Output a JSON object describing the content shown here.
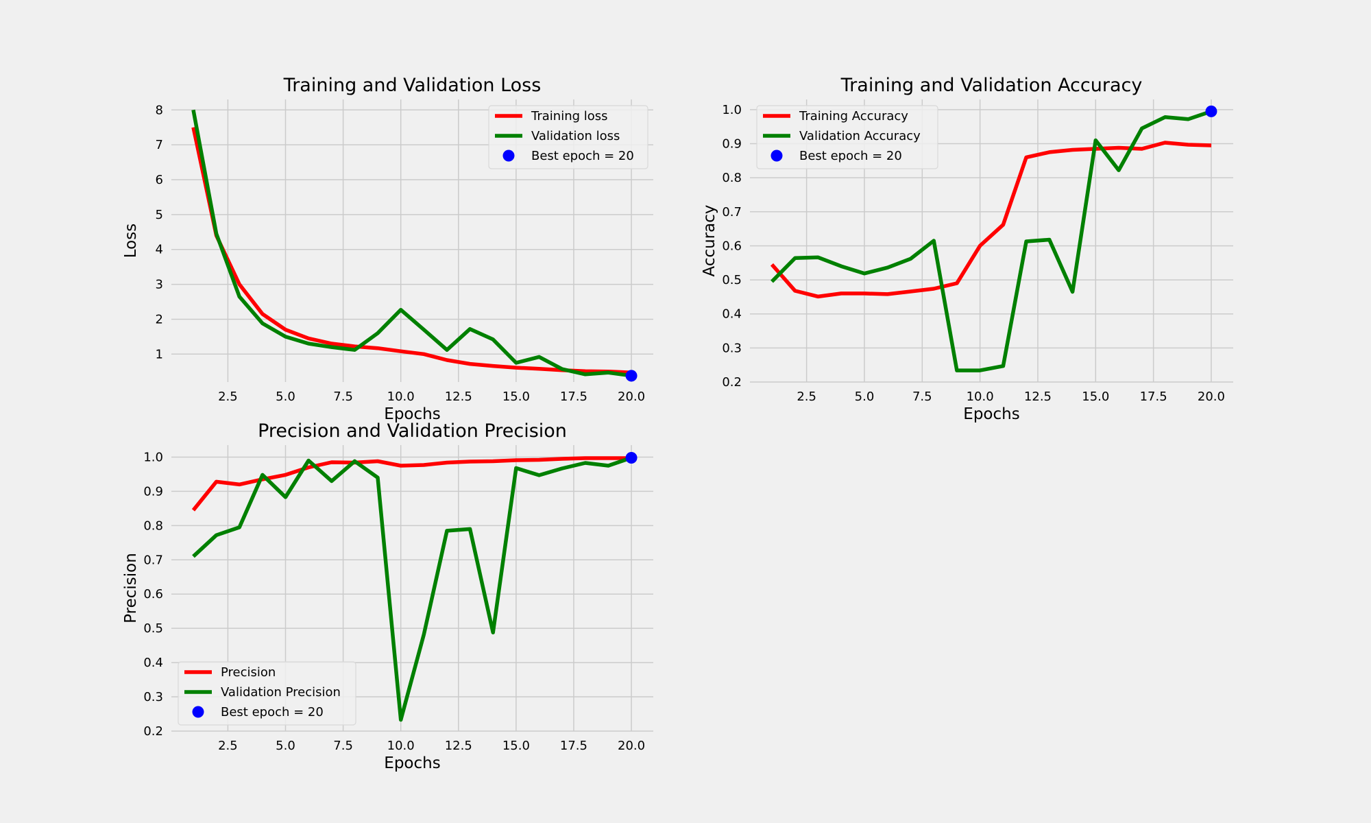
{
  "colors": {
    "background": "#f0f0f0",
    "grid": "#cbcbcb",
    "training": "#ff0000",
    "validation": "#008000",
    "best_marker": "#0000ff"
  },
  "chart_data": [
    {
      "type": "line",
      "title": "Training and Validation Loss",
      "xlabel": "Epochs",
      "ylabel": "Loss",
      "x": [
        1,
        2,
        3,
        4,
        5,
        6,
        7,
        8,
        9,
        10,
        11,
        12,
        13,
        14,
        15,
        16,
        17,
        18,
        19,
        20
      ],
      "xlim": [
        0.05,
        20.95
      ],
      "ylim": [
        0.2,
        8.3
      ],
      "xticks": [
        2.5,
        5.0,
        7.5,
        10.0,
        12.5,
        15.0,
        17.5,
        20.0
      ],
      "xtick_labels": [
        "2.5",
        "5.0",
        "7.5",
        "10.0",
        "12.5",
        "15.0",
        "17.5",
        "20.0"
      ],
      "yticks": [
        1,
        2,
        3,
        4,
        5,
        6,
        7,
        8
      ],
      "ytick_labels": [
        "1",
        "2",
        "3",
        "4",
        "5",
        "6",
        "7",
        "8"
      ],
      "grid": true,
      "legend_position": "top-right",
      "series": [
        {
          "name": "Training loss",
          "color": "#ff0000",
          "values": [
            7.5,
            4.4,
            3.0,
            2.15,
            1.7,
            1.45,
            1.3,
            1.22,
            1.17,
            1.08,
            1.0,
            0.83,
            0.72,
            0.66,
            0.61,
            0.58,
            0.54,
            0.51,
            0.5,
            0.47
          ]
        },
        {
          "name": "Validation loss",
          "color": "#008000",
          "values": [
            8.0,
            4.45,
            2.65,
            1.88,
            1.5,
            1.3,
            1.2,
            1.12,
            1.6,
            2.27,
            1.7,
            1.12,
            1.72,
            1.42,
            0.75,
            0.92,
            0.57,
            0.42,
            0.47,
            0.38
          ]
        }
      ],
      "best": {
        "label": "Best epoch = 20",
        "x": 20,
        "y": 0.38
      }
    },
    {
      "type": "line",
      "title": "Training and Validation Accuracy",
      "xlabel": "Epochs",
      "ylabel": "Accuracy",
      "x": [
        1,
        2,
        3,
        4,
        5,
        6,
        7,
        8,
        9,
        10,
        11,
        12,
        13,
        14,
        15,
        16,
        17,
        18,
        19,
        20
      ],
      "xlim": [
        0.05,
        20.95
      ],
      "ylim": [
        0.2,
        1.03
      ],
      "xticks": [
        2.5,
        5.0,
        7.5,
        10.0,
        12.5,
        15.0,
        17.5,
        20.0
      ],
      "xtick_labels": [
        "2.5",
        "5.0",
        "7.5",
        "10.0",
        "12.5",
        "15.0",
        "17.5",
        "20.0"
      ],
      "yticks": [
        0.2,
        0.3,
        0.4,
        0.5,
        0.6,
        0.7,
        0.8,
        0.9,
        1.0
      ],
      "ytick_labels": [
        "0.2",
        "0.3",
        "0.4",
        "0.5",
        "0.6",
        "0.7",
        "0.8",
        "0.9",
        "1.0"
      ],
      "grid": true,
      "legend_position": "top-left",
      "series": [
        {
          "name": "Training Accuracy",
          "color": "#ff0000",
          "values": [
            0.545,
            0.468,
            0.451,
            0.46,
            0.46,
            0.458,
            0.466,
            0.474,
            0.49,
            0.6,
            0.662,
            0.86,
            0.875,
            0.882,
            0.885,
            0.888,
            0.885,
            0.903,
            0.897,
            0.895
          ]
        },
        {
          "name": "Validation Accuracy",
          "color": "#008000",
          "values": [
            0.495,
            0.564,
            0.566,
            0.54,
            0.519,
            0.536,
            0.562,
            0.615,
            0.234,
            0.234,
            0.247,
            0.613,
            0.618,
            0.465,
            0.91,
            0.822,
            0.945,
            0.978,
            0.972,
            0.995
          ]
        }
      ],
      "best": {
        "label": "Best epoch = 20",
        "x": 20,
        "y": 0.995
      }
    },
    {
      "type": "line",
      "title": "Precision and Validation Precision",
      "xlabel": "Epochs",
      "ylabel": "Precision",
      "x": [
        1,
        2,
        3,
        4,
        5,
        6,
        7,
        8,
        9,
        10,
        11,
        12,
        13,
        14,
        15,
        16,
        17,
        18,
        19,
        20
      ],
      "xlim": [
        0.05,
        20.95
      ],
      "ylim": [
        0.2,
        1.035
      ],
      "xticks": [
        2.5,
        5.0,
        7.5,
        10.0,
        12.5,
        15.0,
        17.5,
        20.0
      ],
      "xtick_labels": [
        "2.5",
        "5.0",
        "7.5",
        "10.0",
        "12.5",
        "15.0",
        "17.5",
        "20.0"
      ],
      "yticks": [
        0.2,
        0.3,
        0.4,
        0.5,
        0.6,
        0.7,
        0.8,
        0.9,
        1.0
      ],
      "ytick_labels": [
        "0.2",
        "0.3",
        "0.4",
        "0.5",
        "0.6",
        "0.7",
        "0.8",
        "0.9",
        "1.0"
      ],
      "grid": true,
      "legend_position": "bottom-left",
      "series": [
        {
          "name": "Precision",
          "color": "#ff0000",
          "values": [
            0.845,
            0.928,
            0.92,
            0.935,
            0.948,
            0.97,
            0.985,
            0.984,
            0.988,
            0.975,
            0.977,
            0.984,
            0.987,
            0.988,
            0.991,
            0.992,
            0.995,
            0.997,
            0.997,
            0.997
          ]
        },
        {
          "name": "Validation Precision",
          "color": "#008000",
          "values": [
            0.71,
            0.772,
            0.795,
            0.948,
            0.883,
            0.99,
            0.93,
            0.988,
            0.94,
            0.233,
            0.482,
            0.785,
            0.79,
            0.488,
            0.968,
            0.947,
            0.967,
            0.983,
            0.975,
            0.998
          ]
        }
      ],
      "best": {
        "label": "Best epoch = 20",
        "x": 20,
        "y": 0.998
      }
    }
  ]
}
